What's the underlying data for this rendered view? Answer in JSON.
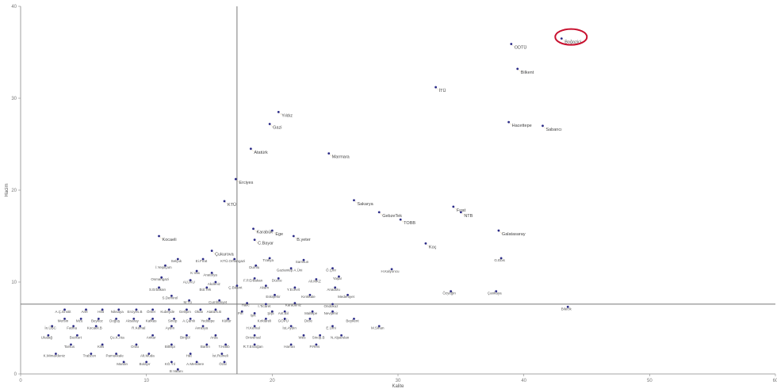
{
  "chart_data": {
    "type": "scatter",
    "title": "",
    "xlabel": "Kalite",
    "ylabel": "Hacim",
    "xlim": [
      0,
      60
    ],
    "ylim": [
      0,
      40
    ],
    "xticks": [
      "0",
      "10",
      "20",
      "30",
      "40",
      "50",
      "60"
    ],
    "yticks": [
      "0",
      "10",
      "20",
      "30",
      "40"
    ],
    "grid": false,
    "legend": "none",
    "reference_lines": {
      "x": 17.2,
      "y": 7.6
    },
    "highlighted": "Boğaziçi",
    "colors": {
      "points": "#2b2b88",
      "leader": "#c9a55a",
      "highlight_ring": "#c8102e",
      "axis": "#888888"
    },
    "points": [
      {
        "label": "Boğaziçi",
        "x": 43,
        "y": 36.5
      },
      {
        "label": "ODTÜ",
        "x": 39,
        "y": 35.9
      },
      {
        "label": "Bilkent",
        "x": 39.5,
        "y": 33.2
      },
      {
        "label": "İTÜ",
        "x": 33,
        "y": 31.2
      },
      {
        "label": "Hacettepe",
        "x": 38.8,
        "y": 27.4
      },
      {
        "label": "Sabancı",
        "x": 41.5,
        "y": 27.0
      },
      {
        "label": "Yıldız",
        "x": 20.5,
        "y": 28.5
      },
      {
        "label": "Gazi",
        "x": 19.8,
        "y": 27.2
      },
      {
        "label": "Atatürk",
        "x": 18.3,
        "y": 24.5
      },
      {
        "label": "Marmara",
        "x": 24.5,
        "y": 24.0
      },
      {
        "label": "Erciyes",
        "x": 17.1,
        "y": 21.2
      },
      {
        "label": "KTÜ",
        "x": 16.2,
        "y": 18.8
      },
      {
        "label": "Sakarya",
        "x": 26.5,
        "y": 18.9
      },
      {
        "label": "GebzeTek",
        "x": 28.5,
        "y": 17.6
      },
      {
        "label": "TOBB",
        "x": 30.2,
        "y": 16.8
      },
      {
        "label": "Fırat",
        "x": 34.4,
        "y": 18.2
      },
      {
        "label": "NTB",
        "x": 35,
        "y": 17.6
      },
      {
        "label": "Galatasaray",
        "x": 38,
        "y": 15.6
      },
      {
        "label": "Koç",
        "x": 32.2,
        "y": 14.2
      },
      {
        "label": "Kocaeli",
        "x": 11,
        "y": 15.0
      },
      {
        "label": "Karabük",
        "x": 18.5,
        "y": 15.8
      },
      {
        "label": "Ege",
        "x": 20,
        "y": 15.6
      },
      {
        "label": "C.Bayar",
        "x": 18.6,
        "y": 14.6
      },
      {
        "label": "B.yeter",
        "x": 21.7,
        "y": 15.0
      },
      {
        "label": "Çukurova",
        "x": 15.2,
        "y": 13.4
      },
      {
        "label": "Selçuk",
        "x": 12.5,
        "y": 12.5
      },
      {
        "label": "Ei.Fırat",
        "x": 14.5,
        "y": 12.5
      },
      {
        "label": "KTÜ.Orhangazi",
        "x": 17,
        "y": 12.5
      },
      {
        "label": "Trakya",
        "x": 19.8,
        "y": 12.6
      },
      {
        "label": "Samsun",
        "x": 22.5,
        "y": 12.4
      },
      {
        "label": "İ.Yeşilçam",
        "x": 11.5,
        "y": 11.8
      },
      {
        "label": "K.Vas",
        "x": 14,
        "y": 11.2
      },
      {
        "label": "Anatolya",
        "x": 15.2,
        "y": 11.0
      },
      {
        "label": "Dumlu",
        "x": 18.7,
        "y": 11.8
      },
      {
        "label": "Gaziantep A.Üni",
        "x": 21.5,
        "y": 11.5
      },
      {
        "label": "Ö.Çinr",
        "x": 24.8,
        "y": 11.5
      },
      {
        "label": "H.Kalyoncu",
        "x": 29.5,
        "y": 11.4
      },
      {
        "label": "G.Ebis",
        "x": 38.2,
        "y": 12.6
      },
      {
        "label": "Osmangazi",
        "x": 11.2,
        "y": 10.5
      },
      {
        "label": "ALÜKU",
        "x": 13.5,
        "y": 10.2
      },
      {
        "label": "Akdeniz",
        "x": 15.5,
        "y": 10.0
      },
      {
        "label": "F.P.Erbakan",
        "x": 18.6,
        "y": 10.4
      },
      {
        "label": "Düzce",
        "x": 20.5,
        "y": 10.4
      },
      {
        "label": "Ali.MKZ",
        "x": 23.5,
        "y": 10.3
      },
      {
        "label": "Yaşar",
        "x": 25.3,
        "y": 10.6
      },
      {
        "label": "S.Erbakan",
        "x": 11,
        "y": 9.4
      },
      {
        "label": "Bül.Tek",
        "x": 14.8,
        "y": 9.4
      },
      {
        "label": "Ç.Bülent",
        "x": 17.2,
        "y": 9.6
      },
      {
        "label": "Akam",
        "x": 19.5,
        "y": 9.6
      },
      {
        "label": "Y.Ecevit",
        "x": 21.8,
        "y": 9.4
      },
      {
        "label": "Anadolu",
        "x": 25,
        "y": 9.4
      },
      {
        "label": "S.Demirel",
        "x": 12,
        "y": 8.5
      },
      {
        "label": "Eskişehir",
        "x": 20.2,
        "y": 8.6
      },
      {
        "label": "Kırıkkale",
        "x": 23,
        "y": 8.6
      },
      {
        "label": "Medeniyet",
        "x": 26,
        "y": 8.6
      },
      {
        "label": "Özyeğin",
        "x": 34.2,
        "y": 9.0
      },
      {
        "label": "Çankaya",
        "x": 37.8,
        "y": 9.0
      },
      {
        "label": "M.Tü",
        "x": 13.4,
        "y": 8.0
      },
      {
        "label": "Cumhuriyet",
        "x": 15.8,
        "y": 8.0
      },
      {
        "label": "Halic",
        "x": 18,
        "y": 7.7
      },
      {
        "label": "İ.Ticaret",
        "x": 19.5,
        "y": 7.6
      },
      {
        "label": "Karadeniz",
        "x": 21.8,
        "y": 7.7
      },
      {
        "label": "Ondokuz",
        "x": 24.8,
        "y": 7.6
      },
      {
        "label": "Bilecik",
        "x": 43.5,
        "y": 7.3
      },
      {
        "label": "A.Ç.Enstit",
        "x": 3.5,
        "y": 7.0
      },
      {
        "label": "Arel",
        "x": 5.2,
        "y": 7.0
      },
      {
        "label": "Hitit",
        "x": 6.5,
        "y": 7.0
      },
      {
        "label": "Niksaya",
        "x": 7.8,
        "y": 7.0
      },
      {
        "label": "Erciyes.B",
        "x": 9.2,
        "y": 7.0
      },
      {
        "label": "Ömer",
        "x": 10.5,
        "y": 7.0
      },
      {
        "label": "Kubeyde",
        "x": 11.8,
        "y": 7.0
      },
      {
        "label": "Gelişim",
        "x": 13.2,
        "y": 7.0
      },
      {
        "label": "Okan",
        "x": 14.3,
        "y": 7.0
      },
      {
        "label": "Atatürk.B",
        "x": 15.5,
        "y": 7.0
      },
      {
        "label": "Pirî",
        "x": 17.6,
        "y": 6.8
      },
      {
        "label": "Işık",
        "x": 18.6,
        "y": 6.6
      },
      {
        "label": "Şişli",
        "x": 20,
        "y": 6.8
      },
      {
        "label": "Ant.Bil",
        "x": 21,
        "y": 6.8
      },
      {
        "label": "Maltepe",
        "x": 23.2,
        "y": 6.8
      },
      {
        "label": "Nevşehir",
        "x": 24.8,
        "y": 6.8
      },
      {
        "label": "Mersin",
        "x": 3.5,
        "y": 6.0
      },
      {
        "label": "Mzu",
        "x": 4.8,
        "y": 6.0
      },
      {
        "label": "Beykoz",
        "x": 6.2,
        "y": 6.0
      },
      {
        "label": "Doğuş",
        "x": 7.6,
        "y": 6.0
      },
      {
        "label": "Aksaray",
        "x": 9.0,
        "y": 6.0
      },
      {
        "label": "Kafkas",
        "x": 10.5,
        "y": 6.0
      },
      {
        "label": "Sinop",
        "x": 12.2,
        "y": 6.0
      },
      {
        "label": "A.Çamlı",
        "x": 13.5,
        "y": 6.0
      },
      {
        "label": "Yeditepe",
        "x": 15,
        "y": 6.0
      },
      {
        "label": "Kültür",
        "x": 16.5,
        "y": 6.0
      },
      {
        "label": "Kırklareli",
        "x": 19.5,
        "y": 6.0
      },
      {
        "label": "GOPÜ",
        "x": 21,
        "y": 6.0
      },
      {
        "label": "Dicle",
        "x": 23,
        "y": 6.0
      },
      {
        "label": "Beykent",
        "x": 26.5,
        "y": 6.0
      },
      {
        "label": "İn.ÜBC",
        "x": 2.5,
        "y": 5.2
      },
      {
        "label": "Fatma",
        "x": 4.2,
        "y": 5.2
      },
      {
        "label": "Kocaeli.B",
        "x": 6.0,
        "y": 5.2
      },
      {
        "label": "R.Kemal",
        "x": 9.5,
        "y": 5.2
      },
      {
        "label": "Aydın",
        "x": 12,
        "y": 5.2
      },
      {
        "label": "Avrasya",
        "x": 14.5,
        "y": 5.2
      },
      {
        "label": "H.Kemal",
        "x": 18.6,
        "y": 5.2
      },
      {
        "label": "İst.Aydın",
        "x": 21.5,
        "y": 5.2
      },
      {
        "label": "E.Ümi",
        "x": 24.8,
        "y": 5.2
      },
      {
        "label": "M.Sinan",
        "x": 28.5,
        "y": 5.2
      },
      {
        "label": "Uludağ",
        "x": 2.2,
        "y": 4.2
      },
      {
        "label": "Bozkurt",
        "x": 4.5,
        "y": 4.2
      },
      {
        "label": "Çu.K.Ata",
        "x": 7.8,
        "y": 4.2
      },
      {
        "label": "Ankar",
        "x": 10.5,
        "y": 4.2
      },
      {
        "label": "Bingöl",
        "x": 13.2,
        "y": 4.2
      },
      {
        "label": "Arda",
        "x": 15.5,
        "y": 4.2
      },
      {
        "label": "Oniversal",
        "x": 18.6,
        "y": 4.2
      },
      {
        "label": "Wes",
        "x": 22.5,
        "y": 4.2
      },
      {
        "label": "Sinop.B",
        "x": 23.8,
        "y": 4.2
      },
      {
        "label": "N.Alparslan",
        "x": 25.5,
        "y": 4.2
      },
      {
        "label": "Tarsus",
        "x": 4.0,
        "y": 3.2
      },
      {
        "label": "Kilis",
        "x": 6.5,
        "y": 3.2
      },
      {
        "label": "Ordu",
        "x": 9.2,
        "y": 3.2
      },
      {
        "label": "Bitlispi",
        "x": 12,
        "y": 3.2
      },
      {
        "label": "Bartın",
        "x": 14.8,
        "y": 3.2
      },
      {
        "label": "T.Hatib",
        "x": 16.3,
        "y": 3.2
      },
      {
        "label": "R.T.Erdoğan",
        "x": 18.6,
        "y": 3.2
      },
      {
        "label": "Harran",
        "x": 21.5,
        "y": 3.2
      },
      {
        "label": "P.Reis",
        "x": 23.5,
        "y": 3.2
      },
      {
        "label": "K.Mimardeniz",
        "x": 2.8,
        "y": 2.2
      },
      {
        "label": "Trabzon",
        "x": 5.6,
        "y": 2.2
      },
      {
        "label": "Pamukkale",
        "x": 7.6,
        "y": 2.2
      },
      {
        "label": "Alt.Muda",
        "x": 10.2,
        "y": 2.2
      },
      {
        "label": "Hat",
        "x": 13.5,
        "y": 2.2
      },
      {
        "label": "İst.Rumeli",
        "x": 16.0,
        "y": 2.2
      },
      {
        "label": "Mardin",
        "x": 8.2,
        "y": 1.3
      },
      {
        "label": "Bolayır",
        "x": 10.0,
        "y": 1.3
      },
      {
        "label": "KĞ.Yıl",
        "x": 12.0,
        "y": 1.3
      },
      {
        "label": "A.Mendere",
        "x": 14.0,
        "y": 1.3
      },
      {
        "label": "Özal",
        "x": 16.2,
        "y": 1.3
      },
      {
        "label": "B.Vatanı",
        "x": 12.5,
        "y": 0.5
      }
    ]
  }
}
